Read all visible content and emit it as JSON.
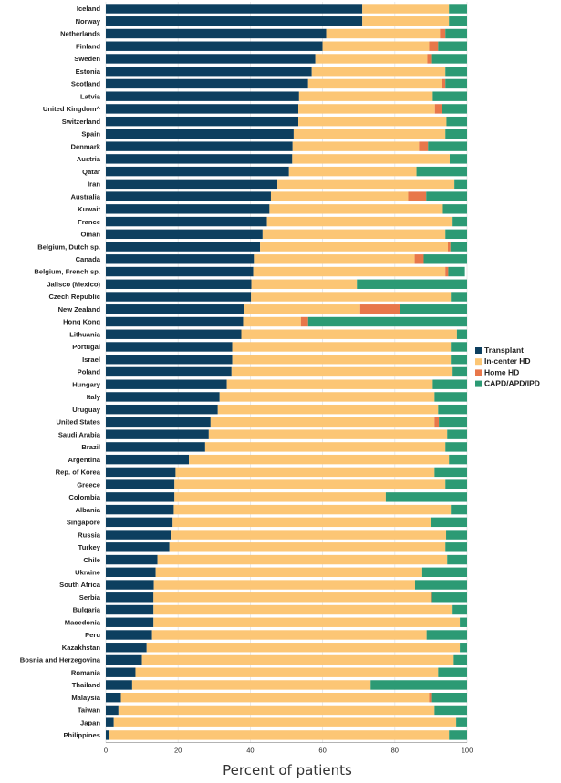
{
  "chart_data": {
    "type": "bar",
    "orientation": "horizontal",
    "stacked": true,
    "xlabel": "Percent of patients",
    "xlim": [
      0,
      100
    ],
    "xticks": [
      "0",
      "20",
      "40",
      "60",
      "80",
      "100"
    ],
    "legend_position": "right",
    "categories": [
      "Iceland",
      "Norway",
      "Netherlands",
      "Finland",
      "Sweden",
      "Estonia",
      "Scotland",
      "Latvia",
      "United Kingdom^",
      "Switzerland",
      "Spain",
      "Denmark",
      "Austria",
      "Qatar",
      "Iran",
      "Australia",
      "Kuwait",
      "France",
      "Oman",
      "Belgium, Dutch sp.",
      "Canada",
      "Belgium, French sp.",
      "Jalisco (Mexico)",
      "Czech Republic",
      "New Zealand",
      "Hong Kong",
      "Lithuania",
      "Portugal",
      "Israel",
      "Poland",
      "Hungary",
      "Italy",
      "Uruguay",
      "United States",
      "Saudi Arabia",
      "Brazil",
      "Argentina",
      "Rep. of Korea",
      "Greece",
      "Colombia",
      "Albania",
      "Singapore",
      "Russia",
      "Turkey",
      "Chile",
      "Ukraine",
      "South Africa",
      "Serbia",
      "Bulgaria",
      "Macedonia",
      "Peru",
      "Kazakhstan",
      "Bosnia and Herzegovina",
      "Romania",
      "Thailand",
      "Malaysia",
      "Taiwan",
      "Japan",
      "Philippines"
    ],
    "series": [
      {
        "name": "Transplant",
        "color": "#0d3f5f",
        "values": [
          71,
          71,
          61,
          60,
          58,
          57,
          56,
          53.5,
          53.3,
          53.3,
          52,
          51.7,
          51.6,
          50.7,
          47.5,
          45.7,
          45.3,
          44.6,
          43.4,
          42.7,
          41,
          40.8,
          40.3,
          40.2,
          38.4,
          38,
          37.5,
          35,
          35,
          34.8,
          33.5,
          31.5,
          31,
          29,
          28.5,
          27.5,
          23,
          19.3,
          19,
          19,
          18.8,
          18.5,
          18.2,
          17.6,
          14.3,
          13.8,
          13.3,
          13.2,
          13.2,
          13.2,
          12.8,
          11.3,
          10,
          8.2,
          7.3,
          4.2,
          3.5,
          2.2,
          1
        ]
      },
      {
        "name": "In-center HD",
        "color": "#fcc675",
        "values": [
          24,
          24,
          31.5,
          29.5,
          31,
          37,
          37,
          37,
          37.8,
          41,
          42,
          35,
          43.6,
          35.3,
          49,
          38,
          48,
          51.4,
          50.6,
          52,
          44.5,
          53.2,
          29.2,
          55.3,
          32,
          16,
          59.7,
          60.5,
          60.5,
          61.2,
          57,
          59.5,
          61,
          62,
          66,
          66.5,
          72,
          71.7,
          75,
          58.5,
          76.7,
          71.5,
          76,
          76.4,
          80.2,
          73.8,
          72.3,
          76.7,
          82.8,
          84.8,
          76,
          86.7,
          86.3,
          83.8,
          66,
          85.3,
          87.5,
          94.8,
          94
        ]
      },
      {
        "name": "Home HD",
        "color": "#e8774a",
        "values": [
          0,
          0,
          1.5,
          2.5,
          1.3,
          0,
          1,
          0,
          2,
          0,
          0,
          2.5,
          0,
          0,
          0,
          5,
          0,
          0,
          0,
          0.7,
          2.5,
          0.8,
          0,
          0,
          11,
          2,
          0,
          0,
          0,
          0,
          0,
          0,
          0,
          1.2,
          0,
          0,
          0,
          0,
          0,
          0,
          0,
          0,
          0,
          0,
          0,
          0,
          0,
          0.4,
          0,
          0,
          0,
          0,
          0,
          0,
          0,
          0.8,
          0,
          0,
          0
        ]
      },
      {
        "name": "CAPD/APD/IPD",
        "color": "#2c9a74",
        "values": [
          5,
          5,
          6,
          8,
          9.7,
          6,
          6,
          9.5,
          6.9,
          5.7,
          6,
          10.8,
          4.8,
          14,
          3.5,
          11.3,
          6.7,
          4,
          6,
          4.6,
          12,
          4.6,
          30.5,
          4.5,
          18.6,
          44,
          2.8,
          4.5,
          4.5,
          4,
          9.5,
          9,
          8,
          7.8,
          5.5,
          6,
          5,
          9,
          6,
          22.5,
          4.5,
          10,
          5.8,
          6,
          5.5,
          12.4,
          14.4,
          9.7,
          4,
          2,
          11.2,
          2,
          3.7,
          8,
          26.7,
          9.7,
          9,
          3,
          5
        ]
      }
    ]
  }
}
